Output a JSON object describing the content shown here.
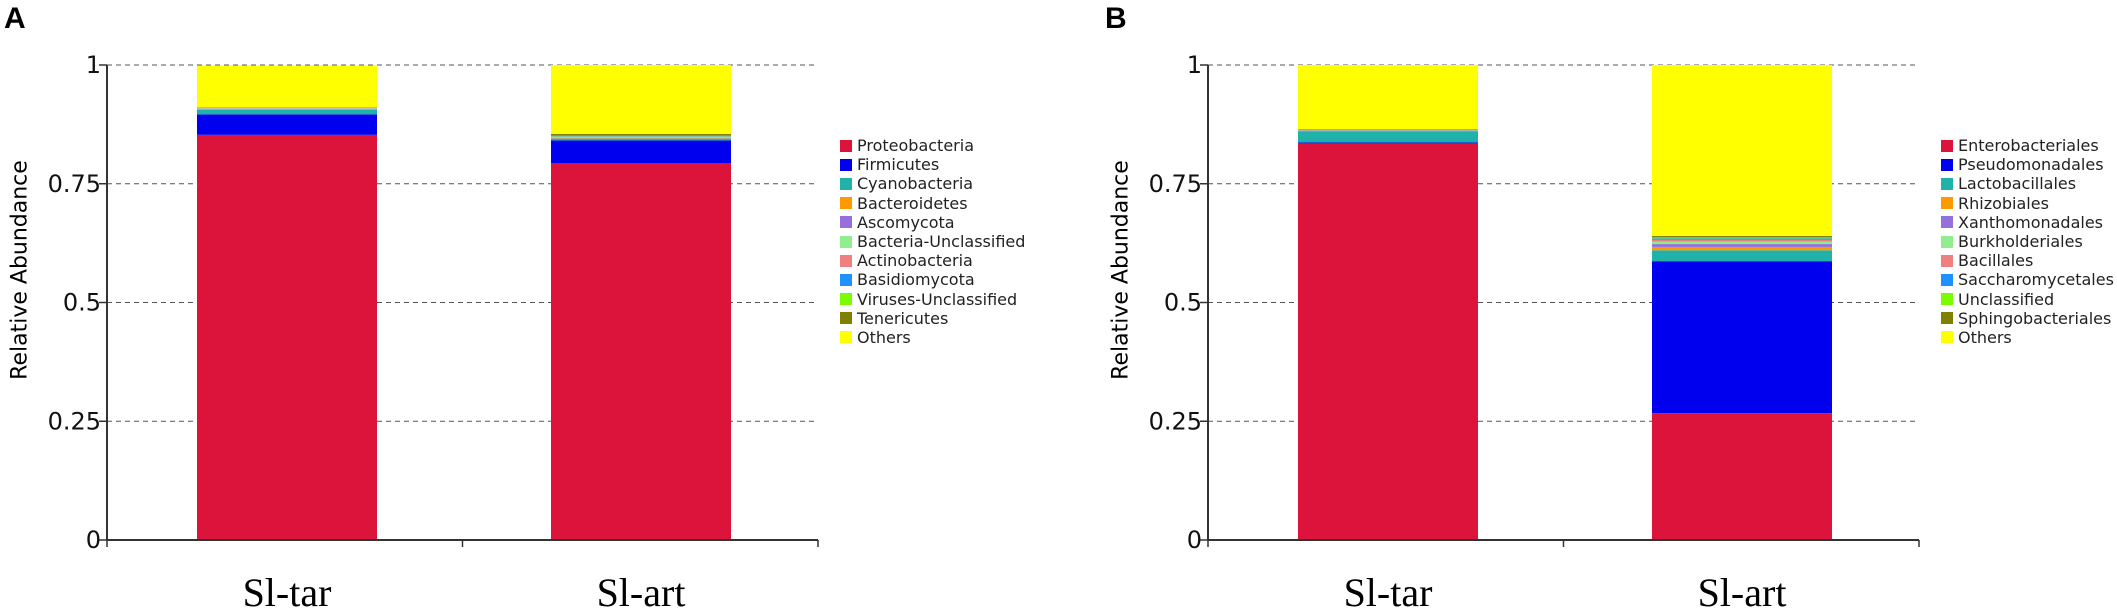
{
  "panels": [
    {
      "panel_label": "A",
      "chart_data": {
        "type": "bar",
        "stacked": true,
        "title": "",
        "xlabel": "",
        "ylabel": "Relative Abundance",
        "ylim": [
          0,
          1
        ],
        "yticks": [
          0,
          0.25,
          0.5,
          0.75,
          1
        ],
        "ytick_labels": [
          "0",
          "0.25",
          "0.5",
          "0.75",
          "1"
        ],
        "grid": "horizontal dashed",
        "legend_position": "right",
        "categories": [
          "Sl-tar",
          "Sl-art"
        ],
        "series": [
          {
            "name": "Proteobacteria",
            "color": "#DC143C",
            "values": [
              0.853,
              0.793
            ]
          },
          {
            "name": "Firmicutes",
            "color": "#0000EE",
            "values": [
              0.043,
              0.048
            ]
          },
          {
            "name": "Cyanobacteria",
            "color": "#20B2AA",
            "values": [
              0.01,
              0.004
            ]
          },
          {
            "name": "Bacteroidetes",
            "color": "#FF9900",
            "values": [
              0.001,
              0.001
            ]
          },
          {
            "name": "Ascomycota",
            "color": "#9370DB",
            "values": [
              0.001,
              0.001
            ]
          },
          {
            "name": "Bacteria-Unclassified",
            "color": "#90EE90",
            "values": [
              0.001,
              0.001
            ]
          },
          {
            "name": "Actinobacteria",
            "color": "#F08080",
            "values": [
              0.001,
              0.001
            ]
          },
          {
            "name": "Basidiomycota",
            "color": "#1E90FF",
            "values": [
              0.001,
              0.001
            ]
          },
          {
            "name": "Viruses-Unclassified",
            "color": "#7CFC00",
            "values": [
              0.0,
              0.001
            ]
          },
          {
            "name": "Tenericutes",
            "color": "#808000",
            "values": [
              0.0,
              0.004
            ]
          },
          {
            "name": "Others",
            "color": "#FFFF00",
            "values": [
              0.088,
              0.145
            ]
          }
        ]
      }
    },
    {
      "panel_label": "B",
      "chart_data": {
        "type": "bar",
        "stacked": true,
        "title": "",
        "xlabel": "",
        "ylabel": "Relative Abundance",
        "ylim": [
          0,
          1
        ],
        "yticks": [
          0,
          0.25,
          0.5,
          0.75,
          1
        ],
        "ytick_labels": [
          "0",
          "0.25",
          "0.5",
          "0.75",
          "1"
        ],
        "grid": "horizontal dashed",
        "legend_position": "right",
        "categories": [
          "Sl-tar",
          "Sl-art"
        ],
        "series": [
          {
            "name": "Enterobacteriales",
            "color": "#DC143C",
            "values": [
              0.835,
              0.267
            ]
          },
          {
            "name": "Pseudomonadales",
            "color": "#0000EE",
            "values": [
              0.002,
              0.32
            ]
          },
          {
            "name": "Lactobacillales",
            "color": "#20B2AA",
            "values": [
              0.023,
              0.023
            ]
          },
          {
            "name": "Rhizobiales",
            "color": "#FF9900",
            "values": [
              0.001,
              0.007
            ]
          },
          {
            "name": "Xanthomonadales",
            "color": "#9370DB",
            "values": [
              0.001,
              0.006
            ]
          },
          {
            "name": "Burkholderiales",
            "color": "#90EE90",
            "values": [
              0.001,
              0.005
            ]
          },
          {
            "name": "Bacillales",
            "color": "#F08080",
            "values": [
              0.001,
              0.004
            ]
          },
          {
            "name": "Saccharomycetales",
            "color": "#1E90FF",
            "values": [
              0.001,
              0.003
            ]
          },
          {
            "name": "Unclassified",
            "color": "#7CFC00",
            "values": [
              0.0,
              0.002
            ]
          },
          {
            "name": "Sphingobacteriales",
            "color": "#808000",
            "values": [
              0.0,
              0.003
            ]
          },
          {
            "name": "Others",
            "color": "#FFFF00",
            "values": [
              0.135,
              0.36
            ]
          }
        ]
      }
    }
  ]
}
